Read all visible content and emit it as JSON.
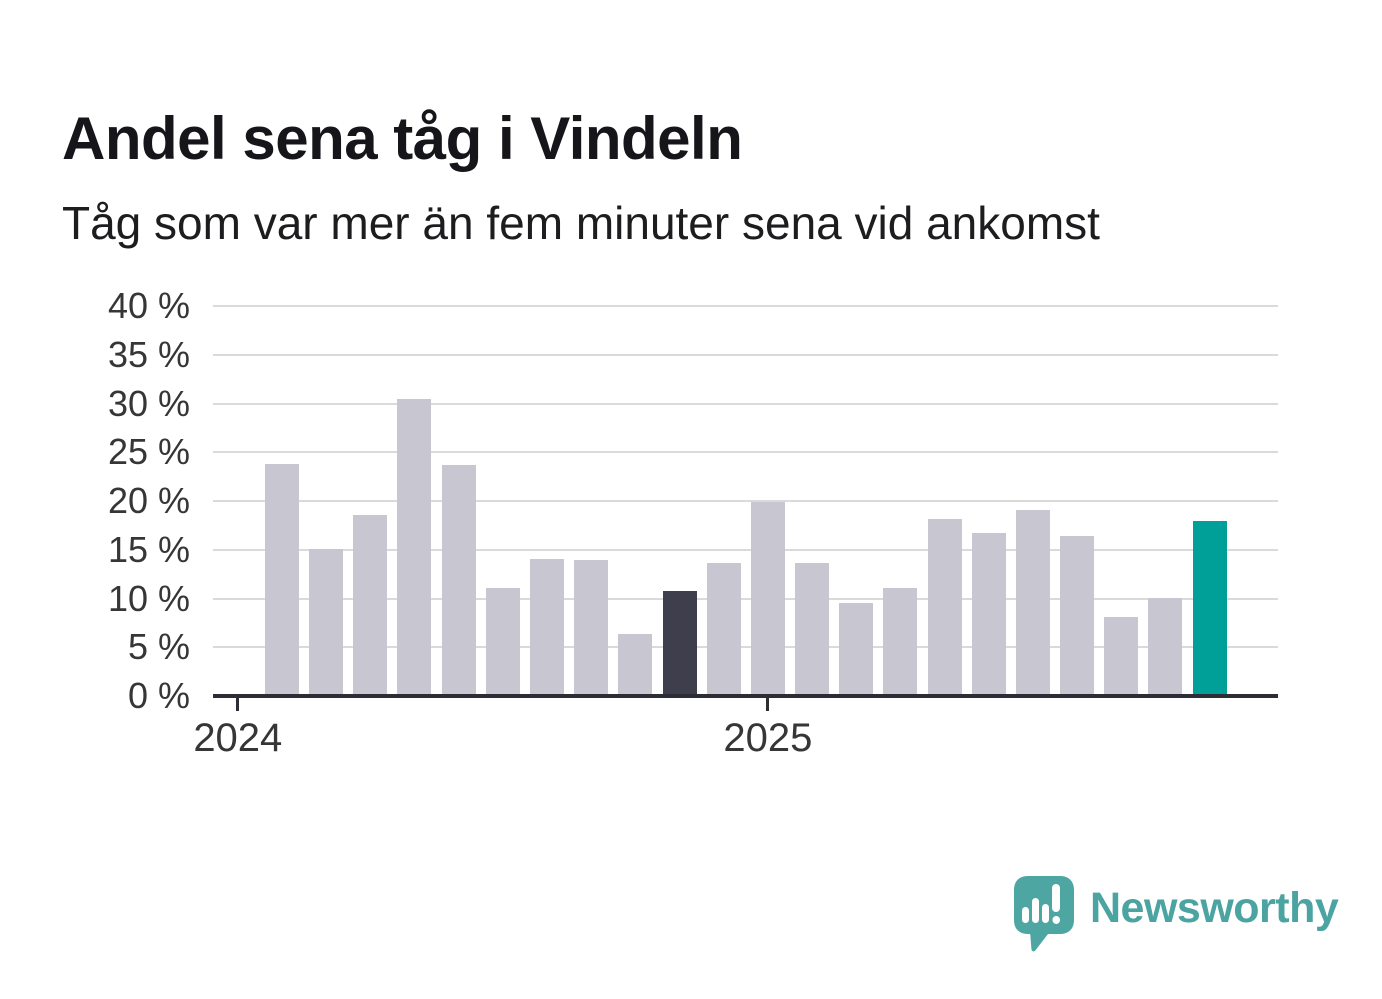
{
  "chart_data": {
    "type": "bar",
    "title": "Andel sena tåg i Vindeln",
    "subtitle": "Tåg som var mer än fem minuter sena vid ankomst",
    "xlabel": "",
    "ylabel": "",
    "unit": "%",
    "ylim": [
      0,
      40
    ],
    "ytick_step": 5,
    "ytick_labels": [
      "0 %",
      "5 %",
      "10 %",
      "15 %",
      "20 %",
      "25 %",
      "30 %",
      "35 %",
      "40 %"
    ],
    "grid": "horizontal",
    "legend": "none",
    "x_axis_years": [
      {
        "label": "2024",
        "month_index": 0
      },
      {
        "label": "2025",
        "month_index": 12
      }
    ],
    "series": [
      {
        "name": "Andel sena tåg",
        "points": [
          {
            "month": "2024-02",
            "value": 23.8,
            "color_key": "default"
          },
          {
            "month": "2024-03",
            "value": 15.1,
            "color_key": "default"
          },
          {
            "month": "2024-04",
            "value": 18.6,
            "color_key": "default"
          },
          {
            "month": "2024-05",
            "value": 30.5,
            "color_key": "default"
          },
          {
            "month": "2024-06",
            "value": 23.7,
            "color_key": "default"
          },
          {
            "month": "2024-07",
            "value": 11.1,
            "color_key": "default"
          },
          {
            "month": "2024-08",
            "value": 14.1,
            "color_key": "default"
          },
          {
            "month": "2024-09",
            "value": 14.0,
            "color_key": "default"
          },
          {
            "month": "2024-10",
            "value": 6.4,
            "color_key": "default"
          },
          {
            "month": "2024-11",
            "value": 10.8,
            "color_key": "previous_year_highlight"
          },
          {
            "month": "2024-12",
            "value": 13.6,
            "color_key": "default"
          },
          {
            "month": "2025-01",
            "value": 19.9,
            "color_key": "default"
          },
          {
            "month": "2025-02",
            "value": 13.6,
            "color_key": "default"
          },
          {
            "month": "2025-03",
            "value": 9.5,
            "color_key": "default"
          },
          {
            "month": "2025-04",
            "value": 11.1,
            "color_key": "default"
          },
          {
            "month": "2025-05",
            "value": 18.2,
            "color_key": "default"
          },
          {
            "month": "2025-06",
            "value": 16.7,
            "color_key": "default"
          },
          {
            "month": "2025-07",
            "value": 19.1,
            "color_key": "default"
          },
          {
            "month": "2025-08",
            "value": 16.4,
            "color_key": "default"
          },
          {
            "month": "2025-09",
            "value": 8.1,
            "color_key": "default"
          },
          {
            "month": "2025-10",
            "value": 10.1,
            "color_key": "default"
          },
          {
            "month": "2025-11",
            "value": 18.0,
            "color_key": "latest_highlight"
          }
        ]
      }
    ],
    "colors": {
      "default": "#c7c6d1",
      "previous_year_highlight": "#3e3e4d",
      "latest_highlight": "#00a099"
    },
    "axis_color": "#2d2d35",
    "gridline_color": "#dadada"
  },
  "branding": {
    "logo_text": "Newsworthy",
    "logo_color": "#4ba4a1"
  }
}
